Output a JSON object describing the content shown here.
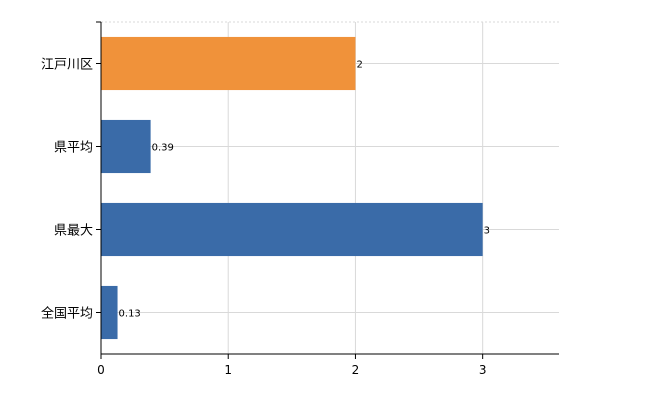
{
  "chart_data": {
    "type": "bar",
    "orientation": "horizontal",
    "categories": [
      "江戸川区",
      "県平均",
      "県最大",
      "全国平均"
    ],
    "values": [
      2,
      0.39,
      3,
      0.13
    ],
    "value_labels": [
      "2",
      "0.39",
      "3",
      "0.13"
    ],
    "bar_colors": [
      "#f0923a",
      "#3a6ba8",
      "#3a6ba8",
      "#3a6ba8"
    ],
    "xlim": [
      0,
      3.6
    ],
    "x_ticks": [
      0,
      1,
      2,
      3
    ],
    "x_tick_labels": [
      "0",
      "1",
      "2",
      "3"
    ],
    "title": "",
    "xlabel": "",
    "ylabel": "",
    "grid": true,
    "legend": "none"
  }
}
